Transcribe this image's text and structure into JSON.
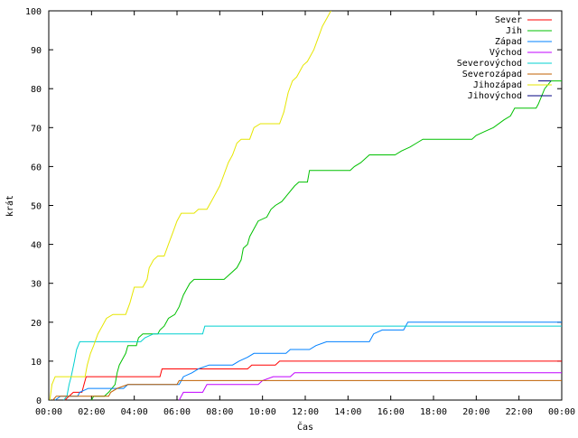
{
  "chart_data": {
    "type": "line",
    "title": "",
    "xlabel": "Čas",
    "ylabel": "krát",
    "xlim": [
      0,
      24
    ],
    "ylim": [
      0,
      100
    ],
    "x_ticks": [
      "00:00",
      "02:00",
      "04:00",
      "06:00",
      "08:00",
      "10:00",
      "12:00",
      "14:00",
      "16:00",
      "18:00",
      "20:00",
      "22:00",
      "00:00"
    ],
    "y_ticks": [
      0,
      10,
      20,
      30,
      40,
      50,
      60,
      70,
      80,
      90,
      100
    ],
    "grid": false,
    "legend_position": "top-right",
    "series": [
      {
        "name": "Sever",
        "color": "#ff0000",
        "points": [
          [
            0.75,
            0
          ],
          [
            0.95,
            1
          ],
          [
            1.15,
            2
          ],
          [
            1.55,
            2
          ],
          [
            1.65,
            4
          ],
          [
            1.75,
            6
          ],
          [
            5.2,
            6
          ],
          [
            5.3,
            8
          ],
          [
            9.3,
            8
          ],
          [
            9.5,
            9
          ],
          [
            10.6,
            9
          ],
          [
            10.8,
            10
          ],
          [
            24,
            10
          ]
        ]
      },
      {
        "name": "Jih",
        "color": "#00c000",
        "points": [
          [
            2.0,
            0
          ],
          [
            2.1,
            1
          ],
          [
            2.6,
            1
          ],
          [
            2.8,
            2
          ],
          [
            3.1,
            4
          ],
          [
            3.2,
            7
          ],
          [
            3.3,
            9
          ],
          [
            3.5,
            11
          ],
          [
            3.6,
            12
          ],
          [
            3.7,
            14
          ],
          [
            4.1,
            14
          ],
          [
            4.2,
            16
          ],
          [
            4.4,
            17
          ],
          [
            5.1,
            17
          ],
          [
            5.2,
            18
          ],
          [
            5.4,
            19
          ],
          [
            5.6,
            21
          ],
          [
            5.9,
            22
          ],
          [
            6.1,
            24
          ],
          [
            6.3,
            27
          ],
          [
            6.5,
            29
          ],
          [
            6.6,
            30
          ],
          [
            6.8,
            31
          ],
          [
            8.2,
            31
          ],
          [
            8.4,
            32
          ],
          [
            8.8,
            34
          ],
          [
            9.0,
            36
          ],
          [
            9.1,
            39
          ],
          [
            9.3,
            40
          ],
          [
            9.4,
            42
          ],
          [
            9.6,
            44
          ],
          [
            9.8,
            46
          ],
          [
            10.2,
            47
          ],
          [
            10.4,
            49
          ],
          [
            10.6,
            50
          ],
          [
            10.9,
            51
          ],
          [
            11.2,
            53
          ],
          [
            11.5,
            55
          ],
          [
            11.7,
            56
          ],
          [
            12.1,
            56
          ],
          [
            12.2,
            59
          ],
          [
            12.6,
            59
          ],
          [
            14.1,
            59
          ],
          [
            14.3,
            60
          ],
          [
            14.6,
            61
          ],
          [
            14.8,
            62
          ],
          [
            15.0,
            63
          ],
          [
            16.2,
            63
          ],
          [
            16.5,
            64
          ],
          [
            16.9,
            65
          ],
          [
            17.2,
            66
          ],
          [
            17.5,
            67
          ],
          [
            19.8,
            67
          ],
          [
            20.0,
            68
          ],
          [
            20.4,
            69
          ],
          [
            20.8,
            70
          ],
          [
            21.3,
            72
          ],
          [
            21.6,
            73
          ],
          [
            21.8,
            75
          ],
          [
            22.8,
            75
          ],
          [
            22.9,
            76
          ],
          [
            23.2,
            80
          ],
          [
            23.5,
            82
          ],
          [
            24,
            82
          ]
        ]
      },
      {
        "name": "Západ",
        "color": "#0080ff",
        "points": [
          [
            0.3,
            0
          ],
          [
            0.55,
            1
          ],
          [
            1.35,
            1
          ],
          [
            1.45,
            2
          ],
          [
            1.85,
            3
          ],
          [
            3.5,
            3
          ],
          [
            3.7,
            4
          ],
          [
            6.1,
            4
          ],
          [
            6.3,
            6
          ],
          [
            6.7,
            7
          ],
          [
            7.0,
            8
          ],
          [
            7.5,
            9
          ],
          [
            8.6,
            9
          ],
          [
            8.9,
            10
          ],
          [
            9.3,
            11
          ],
          [
            9.6,
            12
          ],
          [
            11.1,
            12
          ],
          [
            11.3,
            13
          ],
          [
            12.2,
            13
          ],
          [
            12.5,
            14
          ],
          [
            13.0,
            15
          ],
          [
            15.0,
            15
          ],
          [
            15.2,
            17
          ],
          [
            15.6,
            18
          ],
          [
            16.6,
            18
          ],
          [
            16.8,
            20
          ],
          [
            24,
            20
          ]
        ]
      },
      {
        "name": "Východ",
        "color": "#c000ff",
        "points": [
          [
            6.1,
            0
          ],
          [
            6.3,
            2
          ],
          [
            7.2,
            2
          ],
          [
            7.4,
            4
          ],
          [
            9.8,
            4
          ],
          [
            10.0,
            5
          ],
          [
            10.5,
            6
          ],
          [
            11.3,
            6
          ],
          [
            11.5,
            7
          ],
          [
            24,
            7
          ]
        ]
      },
      {
        "name": "Severovýchod",
        "color": "#00d0d0",
        "points": [
          [
            0.7,
            0
          ],
          [
            0.85,
            1
          ],
          [
            0.95,
            4
          ],
          [
            1.05,
            6
          ],
          [
            1.2,
            10
          ],
          [
            1.3,
            13
          ],
          [
            1.45,
            15
          ],
          [
            4.3,
            15
          ],
          [
            4.5,
            16
          ],
          [
            4.9,
            17
          ],
          [
            7.2,
            17
          ],
          [
            7.3,
            19
          ],
          [
            24,
            19
          ]
        ]
      },
      {
        "name": "Severozápad",
        "color": "#c06000",
        "points": [
          [
            0.2,
            0
          ],
          [
            0.35,
            1
          ],
          [
            2.8,
            1
          ],
          [
            2.9,
            2
          ],
          [
            3.2,
            3
          ],
          [
            3.7,
            4
          ],
          [
            6.0,
            4
          ],
          [
            6.1,
            5
          ],
          [
            24,
            5
          ]
        ]
      },
      {
        "name": "Jihozápad",
        "color": "#e6e600",
        "points": [
          [
            0.05,
            0
          ],
          [
            0.15,
            4
          ],
          [
            0.3,
            6
          ],
          [
            1.7,
            6
          ],
          [
            1.8,
            9
          ],
          [
            1.95,
            12
          ],
          [
            2.1,
            14
          ],
          [
            2.3,
            17
          ],
          [
            2.5,
            19
          ],
          [
            2.7,
            21
          ],
          [
            3.0,
            22
          ],
          [
            3.6,
            22
          ],
          [
            3.8,
            25
          ],
          [
            4.0,
            29
          ],
          [
            4.4,
            29
          ],
          [
            4.6,
            31
          ],
          [
            4.7,
            34
          ],
          [
            4.9,
            36
          ],
          [
            5.1,
            37
          ],
          [
            5.4,
            37
          ],
          [
            5.6,
            40
          ],
          [
            5.8,
            43
          ],
          [
            6.0,
            46
          ],
          [
            6.2,
            48
          ],
          [
            6.8,
            48
          ],
          [
            7.0,
            49
          ],
          [
            7.4,
            49
          ],
          [
            7.6,
            51
          ],
          [
            7.8,
            53
          ],
          [
            8.0,
            55
          ],
          [
            8.2,
            58
          ],
          [
            8.4,
            61
          ],
          [
            8.6,
            63
          ],
          [
            8.8,
            66
          ],
          [
            9.0,
            67
          ],
          [
            9.4,
            67
          ],
          [
            9.6,
            70
          ],
          [
            9.9,
            71
          ],
          [
            10.8,
            71
          ],
          [
            11.0,
            74
          ],
          [
            11.2,
            79
          ],
          [
            11.4,
            82
          ],
          [
            11.6,
            83
          ],
          [
            11.9,
            86
          ],
          [
            12.1,
            87
          ],
          [
            12.4,
            90
          ],
          [
            12.6,
            93
          ],
          [
            12.8,
            96
          ],
          [
            13.0,
            98
          ],
          [
            13.2,
            100
          ]
        ]
      },
      {
        "name": "Jihovýchod",
        "color": "#000080",
        "points": [
          [
            22.9,
            82
          ],
          [
            23.2,
            82
          ],
          [
            23.5,
            82
          ]
        ]
      }
    ]
  }
}
